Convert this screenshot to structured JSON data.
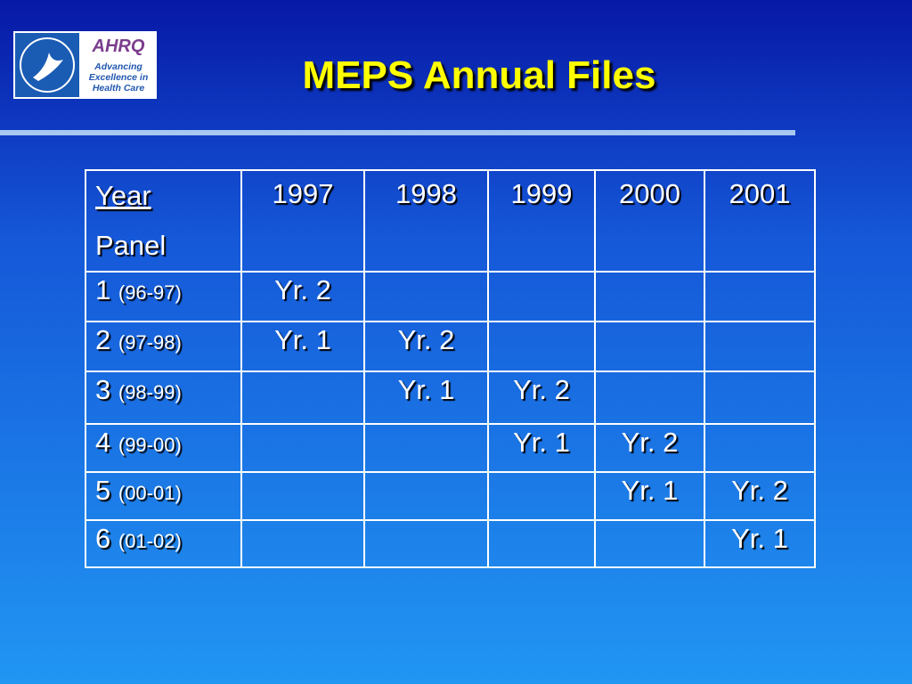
{
  "header": {
    "title": "MEPS Annual Files",
    "logo": {
      "agency": "AHRQ",
      "tagline": [
        "Advancing",
        "Excellence in",
        "Health Care"
      ]
    }
  },
  "table": {
    "corner": {
      "top": "Year",
      "bottom": "Panel"
    },
    "columns": [
      "1997",
      "1998",
      "1999",
      "2000",
      "2001"
    ],
    "rows": [
      {
        "panel": "1",
        "period": "(96-97)",
        "cells": [
          "Yr. 2",
          null,
          null,
          null,
          null
        ]
      },
      {
        "panel": "2",
        "period": "(97-98)",
        "cells": [
          "Yr. 1",
          "Yr. 2",
          null,
          null,
          null
        ]
      },
      {
        "panel": "3",
        "period": "(98-99)",
        "cells": [
          null,
          "Yr. 1",
          "Yr. 2",
          null,
          null
        ]
      },
      {
        "panel": "4",
        "period": "(99-00)",
        "cells": [
          null,
          null,
          "Yr. 1",
          "Yr. 2",
          null
        ]
      },
      {
        "panel": "5",
        "period": "(00-01)",
        "cells": [
          null,
          null,
          null,
          "Yr. 1",
          "Yr. 2"
        ]
      },
      {
        "panel": "6",
        "period": "(01-02)",
        "cells": [
          null,
          null,
          null,
          null,
          "Yr. 1"
        ]
      }
    ]
  }
}
